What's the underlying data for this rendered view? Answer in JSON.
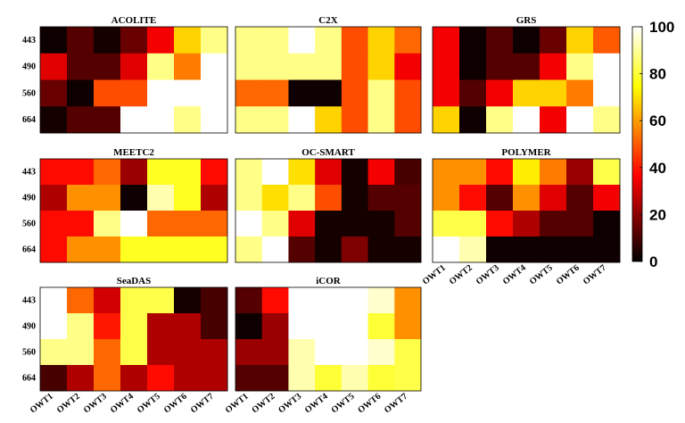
{
  "chart_data": {
    "type": "heatmap",
    "y_labels": [
      "443",
      "490",
      "560",
      "664"
    ],
    "x_labels": [
      "OWT1",
      "OWT2",
      "OWT3",
      "OWT4",
      "OWT5",
      "OWT6",
      "OWT7"
    ],
    "colorbar": {
      "range": [
        0,
        100
      ],
      "ticks": [
        0,
        20,
        40,
        60,
        80,
        100
      ],
      "colormap": "hot"
    },
    "panels": [
      {
        "title": "ACOLITE",
        "values": [
          [
            2,
            12,
            3,
            15,
            35,
            68,
            88
          ],
          [
            32,
            12,
            12,
            32,
            88,
            55,
            100
          ],
          [
            15,
            2,
            48,
            48,
            100,
            100,
            100
          ],
          [
            3,
            12,
            12,
            100,
            100,
            88,
            100
          ]
        ]
      },
      {
        "title": "C2X",
        "values": [
          [
            88,
            88,
            100,
            88,
            48,
            68,
            52
          ],
          [
            88,
            88,
            88,
            88,
            48,
            68,
            35
          ],
          [
            52,
            52,
            2,
            2,
            48,
            88,
            48
          ],
          [
            88,
            88,
            100,
            68,
            48,
            88,
            48
          ]
        ]
      },
      {
        "title": "GRS",
        "values": [
          [
            35,
            2,
            12,
            2,
            15,
            68,
            50
          ],
          [
            35,
            2,
            12,
            12,
            35,
            88,
            100
          ],
          [
            35,
            12,
            35,
            68,
            68,
            55,
            100
          ],
          [
            68,
            2,
            88,
            100,
            35,
            100,
            88
          ]
        ]
      },
      {
        "title": "MEETC2",
        "values": [
          [
            38,
            38,
            52,
            22,
            78,
            78,
            38
          ],
          [
            25,
            58,
            58,
            2,
            92,
            78,
            25
          ],
          [
            38,
            38,
            88,
            100,
            52,
            52,
            52
          ],
          [
            38,
            58,
            58,
            78,
            78,
            78,
            78
          ]
        ]
      },
      {
        "title": "OC-SMART",
        "values": [
          [
            88,
            100,
            70,
            32,
            3,
            35,
            10
          ],
          [
            88,
            70,
            88,
            48,
            3,
            12,
            12
          ],
          [
            100,
            88,
            32,
            3,
            3,
            3,
            12
          ],
          [
            88,
            100,
            12,
            3,
            18,
            3,
            3
          ]
        ]
      },
      {
        "title": "POLYMER",
        "values": [
          [
            58,
            58,
            38,
            72,
            55,
            22,
            82
          ],
          [
            58,
            38,
            12,
            58,
            32,
            12,
            35
          ],
          [
            82,
            82,
            38,
            25,
            12,
            12,
            2
          ],
          [
            100,
            92,
            2,
            2,
            2,
            2,
            2
          ]
        ]
      },
      {
        "title": "SeaDAS",
        "values": [
          [
            100,
            52,
            30,
            82,
            82,
            3,
            10
          ],
          [
            100,
            88,
            40,
            82,
            25,
            25,
            10
          ],
          [
            88,
            88,
            52,
            82,
            25,
            25,
            25
          ],
          [
            10,
            25,
            52,
            25,
            38,
            25,
            25
          ]
        ]
      },
      {
        "title": "iCOR",
        "values": [
          [
            12,
            38,
            100,
            100,
            100,
            95,
            58
          ],
          [
            2,
            22,
            100,
            100,
            100,
            80,
            58
          ],
          [
            22,
            22,
            92,
            100,
            100,
            95,
            82
          ],
          [
            12,
            12,
            92,
            80,
            92,
            80,
            82
          ]
        ]
      }
    ]
  }
}
